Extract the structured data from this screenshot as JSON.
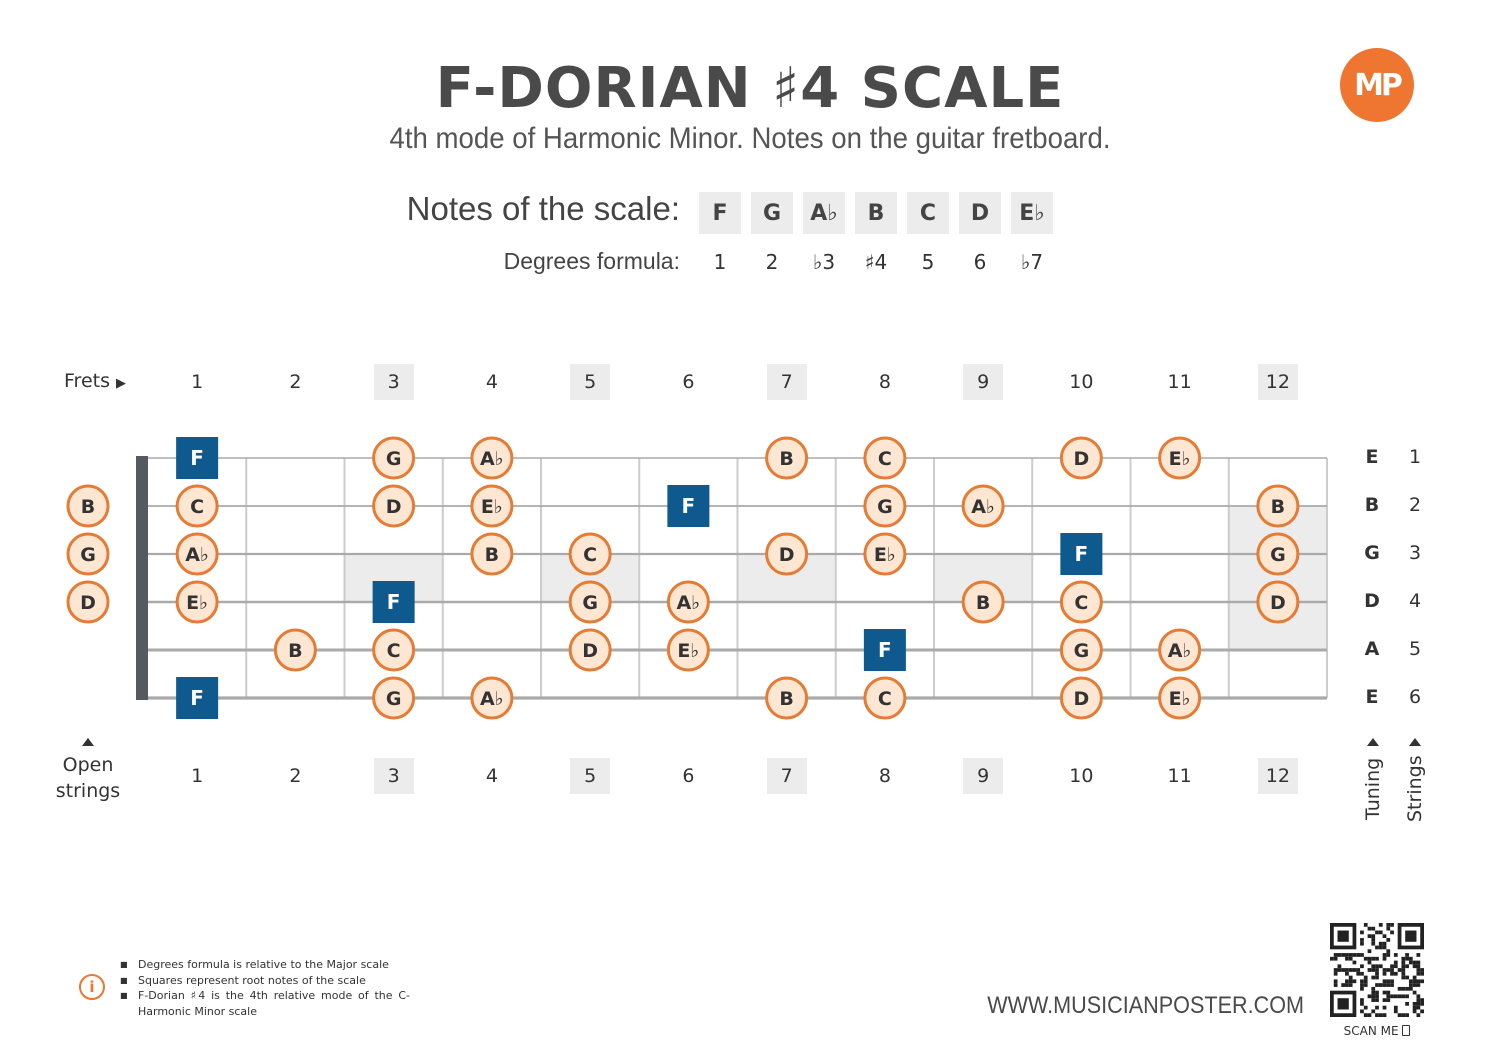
{
  "title": "F-DORIAN ♯4 SCALE",
  "subtitle": "4th mode of Harmonic Minor. Notes on the guitar fretboard.",
  "logo_text": "MP",
  "scale": {
    "notes_label": "Notes of the scale:",
    "degrees_label": "Degrees formula:",
    "notes": [
      "F",
      "G",
      "A♭",
      "B",
      "C",
      "D",
      "E♭"
    ],
    "degrees": [
      "1",
      "2",
      "♭3",
      "♯4",
      "5",
      "6",
      "♭7"
    ]
  },
  "fretboard": {
    "frets_label": "Frets",
    "open_label_line1": "Open",
    "open_label_line2": "strings",
    "tuning_label": "Tuning",
    "strings_label": "Strings",
    "fret_numbers": [
      "1",
      "2",
      "3",
      "4",
      "5",
      "6",
      "7",
      "8",
      "9",
      "10",
      "11",
      "12"
    ],
    "marked_frets": [
      3,
      5,
      7,
      9,
      12
    ],
    "tuning": [
      "E",
      "B",
      "G",
      "D",
      "A",
      "E"
    ],
    "string_numbers": [
      "1",
      "2",
      "3",
      "4",
      "5",
      "6"
    ],
    "open_strings": [
      {
        "string": 2,
        "note": "B"
      },
      {
        "string": 3,
        "note": "G"
      },
      {
        "string": 4,
        "note": "D"
      }
    ],
    "positions": [
      {
        "string": 1,
        "fret": 1,
        "note": "F",
        "root": true
      },
      {
        "string": 1,
        "fret": 3,
        "note": "G"
      },
      {
        "string": 1,
        "fret": 4,
        "note": "A♭"
      },
      {
        "string": 1,
        "fret": 7,
        "note": "B"
      },
      {
        "string": 1,
        "fret": 8,
        "note": "C"
      },
      {
        "string": 1,
        "fret": 10,
        "note": "D"
      },
      {
        "string": 1,
        "fret": 11,
        "note": "E♭"
      },
      {
        "string": 2,
        "fret": 1,
        "note": "C"
      },
      {
        "string": 2,
        "fret": 3,
        "note": "D"
      },
      {
        "string": 2,
        "fret": 4,
        "note": "E♭"
      },
      {
        "string": 2,
        "fret": 6,
        "note": "F",
        "root": true
      },
      {
        "string": 2,
        "fret": 8,
        "note": "G"
      },
      {
        "string": 2,
        "fret": 9,
        "note": "A♭"
      },
      {
        "string": 2,
        "fret": 12,
        "note": "B"
      },
      {
        "string": 3,
        "fret": 1,
        "note": "A♭"
      },
      {
        "string": 3,
        "fret": 4,
        "note": "B"
      },
      {
        "string": 3,
        "fret": 5,
        "note": "C"
      },
      {
        "string": 3,
        "fret": 7,
        "note": "D"
      },
      {
        "string": 3,
        "fret": 8,
        "note": "E♭"
      },
      {
        "string": 3,
        "fret": 10,
        "note": "F",
        "root": true
      },
      {
        "string": 3,
        "fret": 12,
        "note": "G"
      },
      {
        "string": 4,
        "fret": 1,
        "note": "E♭"
      },
      {
        "string": 4,
        "fret": 3,
        "note": "F",
        "root": true
      },
      {
        "string": 4,
        "fret": 5,
        "note": "G"
      },
      {
        "string": 4,
        "fret": 6,
        "note": "A♭"
      },
      {
        "string": 4,
        "fret": 9,
        "note": "B"
      },
      {
        "string": 4,
        "fret": 10,
        "note": "C"
      },
      {
        "string": 4,
        "fret": 12,
        "note": "D"
      },
      {
        "string": 5,
        "fret": 2,
        "note": "B"
      },
      {
        "string": 5,
        "fret": 3,
        "note": "C"
      },
      {
        "string": 5,
        "fret": 5,
        "note": "D"
      },
      {
        "string": 5,
        "fret": 6,
        "note": "E♭"
      },
      {
        "string": 5,
        "fret": 8,
        "note": "F",
        "root": true
      },
      {
        "string": 5,
        "fret": 10,
        "note": "G"
      },
      {
        "string": 5,
        "fret": 11,
        "note": "A♭"
      },
      {
        "string": 6,
        "fret": 1,
        "note": "F",
        "root": true
      },
      {
        "string": 6,
        "fret": 3,
        "note": "G"
      },
      {
        "string": 6,
        "fret": 4,
        "note": "A♭"
      },
      {
        "string": 6,
        "fret": 7,
        "note": "B"
      },
      {
        "string": 6,
        "fret": 8,
        "note": "C"
      },
      {
        "string": 6,
        "fret": 10,
        "note": "D"
      },
      {
        "string": 6,
        "fret": 11,
        "note": "E♭"
      }
    ]
  },
  "footer": {
    "notes": [
      "Degrees formula is relative to the Major scale",
      "Squares represent root notes of the scale",
      "F-Dorian ♯4 is the 4th relative mode of the C-Harmonic Minor scale"
    ],
    "website": "WWW.MUSICIANPOSTER.COM",
    "scan_label": "SCAN ME"
  },
  "colors": {
    "note_fill": "#fde7d2",
    "note_stroke": "#e57b34",
    "root_fill": "#0e5a8f",
    "marker_shade": "#ececec",
    "string": "#aaaaaa",
    "fret": "#cccccc",
    "nut": "#555a60",
    "accent": "#ee7630"
  }
}
